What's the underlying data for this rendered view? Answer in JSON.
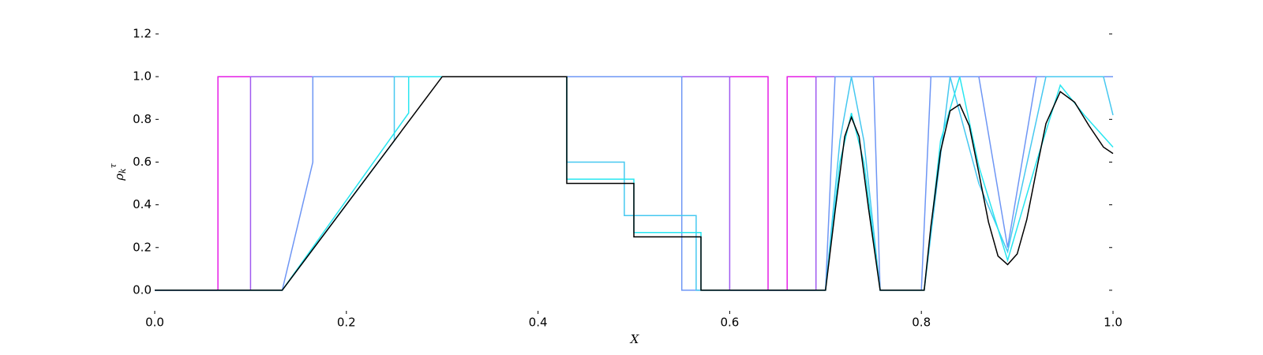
{
  "chart_data": {
    "type": "line",
    "x_label": "X",
    "y_label": {
      "base": "ρ",
      "sub": "k",
      "sup": "τ"
    },
    "xlim": [
      0,
      1
    ],
    "ylim": [
      -0.1,
      1.2
    ],
    "xticks": [
      {
        "value": 0,
        "label": "0.0"
      },
      {
        "value": 0.2,
        "label": "0.2"
      },
      {
        "value": 0.4,
        "label": "0.4"
      },
      {
        "value": 0.6,
        "label": "0.6"
      },
      {
        "value": 0.8,
        "label": "0.8"
      },
      {
        "value": 1,
        "label": "1.0"
      }
    ],
    "yticks": [
      {
        "value": 0,
        "label": "0.0"
      },
      {
        "value": 0.2,
        "label": "0.2"
      },
      {
        "value": 0.4,
        "label": "0.4"
      },
      {
        "value": 0.6,
        "label": "0.6"
      },
      {
        "value": 0.8,
        "label": "0.8"
      },
      {
        "value": 1,
        "label": "1.0"
      },
      {
        "value": 1.2,
        "label": "1.2"
      }
    ],
    "grid": false,
    "series": [
      {
        "color": "#e61ee6",
        "x": [
          0,
          0.066,
          0.066,
          0.64,
          0.64,
          0.66,
          0.66,
          1.0
        ],
        "values": [
          0,
          0,
          1,
          1,
          0,
          0,
          1,
          1
        ]
      },
      {
        "color": "#a05af0",
        "x": [
          0,
          0.1,
          0.1,
          0.6,
          0.6,
          0.69,
          0.69,
          1.0
        ],
        "values": [
          0,
          0,
          1,
          1,
          0,
          0,
          1,
          1
        ]
      },
      {
        "color": "#6e96f5",
        "x": [
          0,
          0.133,
          0.165,
          0.165,
          0.55,
          0.55,
          0.7,
          0.71,
          0.75,
          0.757,
          0.8,
          0.81,
          0.86,
          0.89,
          0.92,
          1.0
        ],
        "values": [
          0,
          0,
          0.6,
          1,
          1,
          0,
          0,
          1,
          1,
          0,
          0,
          1,
          1,
          0.2,
          1,
          1
        ]
      },
      {
        "color": "#46c8f0",
        "x": [
          0,
          0.133,
          0.25,
          0.25,
          0.43,
          0.43,
          0.49,
          0.49,
          0.565,
          0.565,
          0.7,
          0.715,
          0.727,
          0.74,
          0.757,
          0.803,
          0.83,
          0.86,
          0.89,
          0.93,
          0.99,
          1.0
        ],
        "values": [
          0,
          0,
          0.7,
          1,
          1,
          0.6,
          0.6,
          0.35,
          0.35,
          0,
          0,
          0.7,
          1,
          0.7,
          0,
          0,
          1,
          0.5,
          0.18,
          1,
          1,
          0.82
        ]
      },
      {
        "color": "#28e6f0",
        "x": [
          0,
          0.133,
          0.265,
          0.265,
          0.43,
          0.43,
          0.5,
          0.5,
          0.57,
          0.57,
          0.7,
          0.715,
          0.727,
          0.74,
          0.757,
          0.803,
          0.82,
          0.84,
          0.86,
          0.89,
          0.92,
          0.945,
          0.97,
          1.0
        ],
        "values": [
          0,
          0,
          0.83,
          1,
          1,
          0.52,
          0.52,
          0.27,
          0.27,
          0,
          0,
          0.6,
          0.83,
          0.6,
          0,
          0,
          0.7,
          1,
          0.58,
          0.14,
          0.6,
          0.96,
          0.82,
          0.67
        ]
      },
      {
        "color": "#000000",
        "x": [
          0,
          0.133,
          0.3,
          0.43,
          0.43,
          0.5,
          0.5,
          0.57,
          0.57,
          0.7,
          0.71,
          0.72,
          0.727,
          0.735,
          0.745,
          0.757,
          0.803,
          0.81,
          0.82,
          0.83,
          0.84,
          0.85,
          0.86,
          0.87,
          0.88,
          0.89,
          0.9,
          0.91,
          0.92,
          0.93,
          0.945,
          0.96,
          0.975,
          0.99,
          1.0
        ],
        "values": [
          0,
          0,
          1,
          1,
          0.5,
          0.5,
          0.25,
          0.25,
          0,
          0,
          0.37,
          0.72,
          0.81,
          0.72,
          0.38,
          0,
          0,
          0.3,
          0.65,
          0.84,
          0.87,
          0.77,
          0.55,
          0.32,
          0.16,
          0.12,
          0.17,
          0.33,
          0.56,
          0.78,
          0.93,
          0.88,
          0.77,
          0.67,
          0.64
        ]
      }
    ]
  }
}
